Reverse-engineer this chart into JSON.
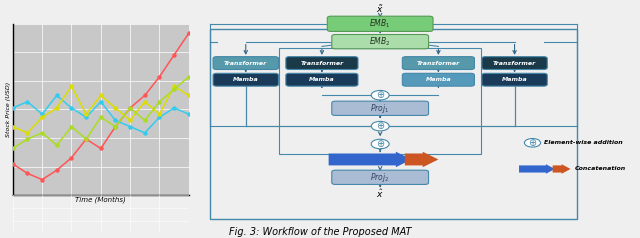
{
  "title": "Fig. 3: Workflow of the Proposed MAT",
  "title_fontsize": 7,
  "fig_bg": "#efefef",
  "left_panel": {
    "xlabel": "Time (Months)",
    "ylabel": "Stock Price (USD)",
    "bg_color": "#cccccc",
    "lines": [
      {
        "color": "#ff5555",
        "y": [
          1.0,
          0.7,
          0.5,
          0.8,
          1.2,
          1.8,
          1.5,
          2.2,
          2.8,
          3.2,
          3.8,
          4.5,
          5.2
        ]
      },
      {
        "color": "#33ccee",
        "y": [
          2.8,
          3.0,
          2.6,
          3.2,
          2.8,
          2.5,
          3.0,
          2.4,
          2.2,
          2.0,
          2.5,
          2.8,
          2.6
        ]
      },
      {
        "color": "#dddd00",
        "y": [
          2.2,
          2.0,
          2.5,
          2.8,
          3.5,
          2.6,
          3.2,
          2.8,
          2.4,
          3.0,
          2.6,
          3.5,
          3.2
        ]
      },
      {
        "color": "#aadd22",
        "y": [
          1.5,
          1.8,
          2.0,
          1.6,
          2.2,
          1.8,
          2.5,
          2.2,
          2.8,
          2.4,
          3.0,
          3.4,
          3.8
        ]
      }
    ]
  },
  "rp": {
    "emb1_color": "#77cc77",
    "emb2_color": "#aaddaa",
    "transformer_teal_color": "#5599aa",
    "transformer_dark_color": "#1a3a4a",
    "mamba_dark_color": "#1a3a5a",
    "mamba_teal_color": "#5599bb",
    "proj_color": "#aabbd4",
    "line_color": "#4488aa",
    "arrow_color": "#336688",
    "plus_color": "#4488aa",
    "concat_blue": "#3366cc",
    "concat_orange": "#cc5522"
  },
  "legend": {
    "plus_label": "Element-wise addition",
    "concat_label": "Concatenation"
  }
}
